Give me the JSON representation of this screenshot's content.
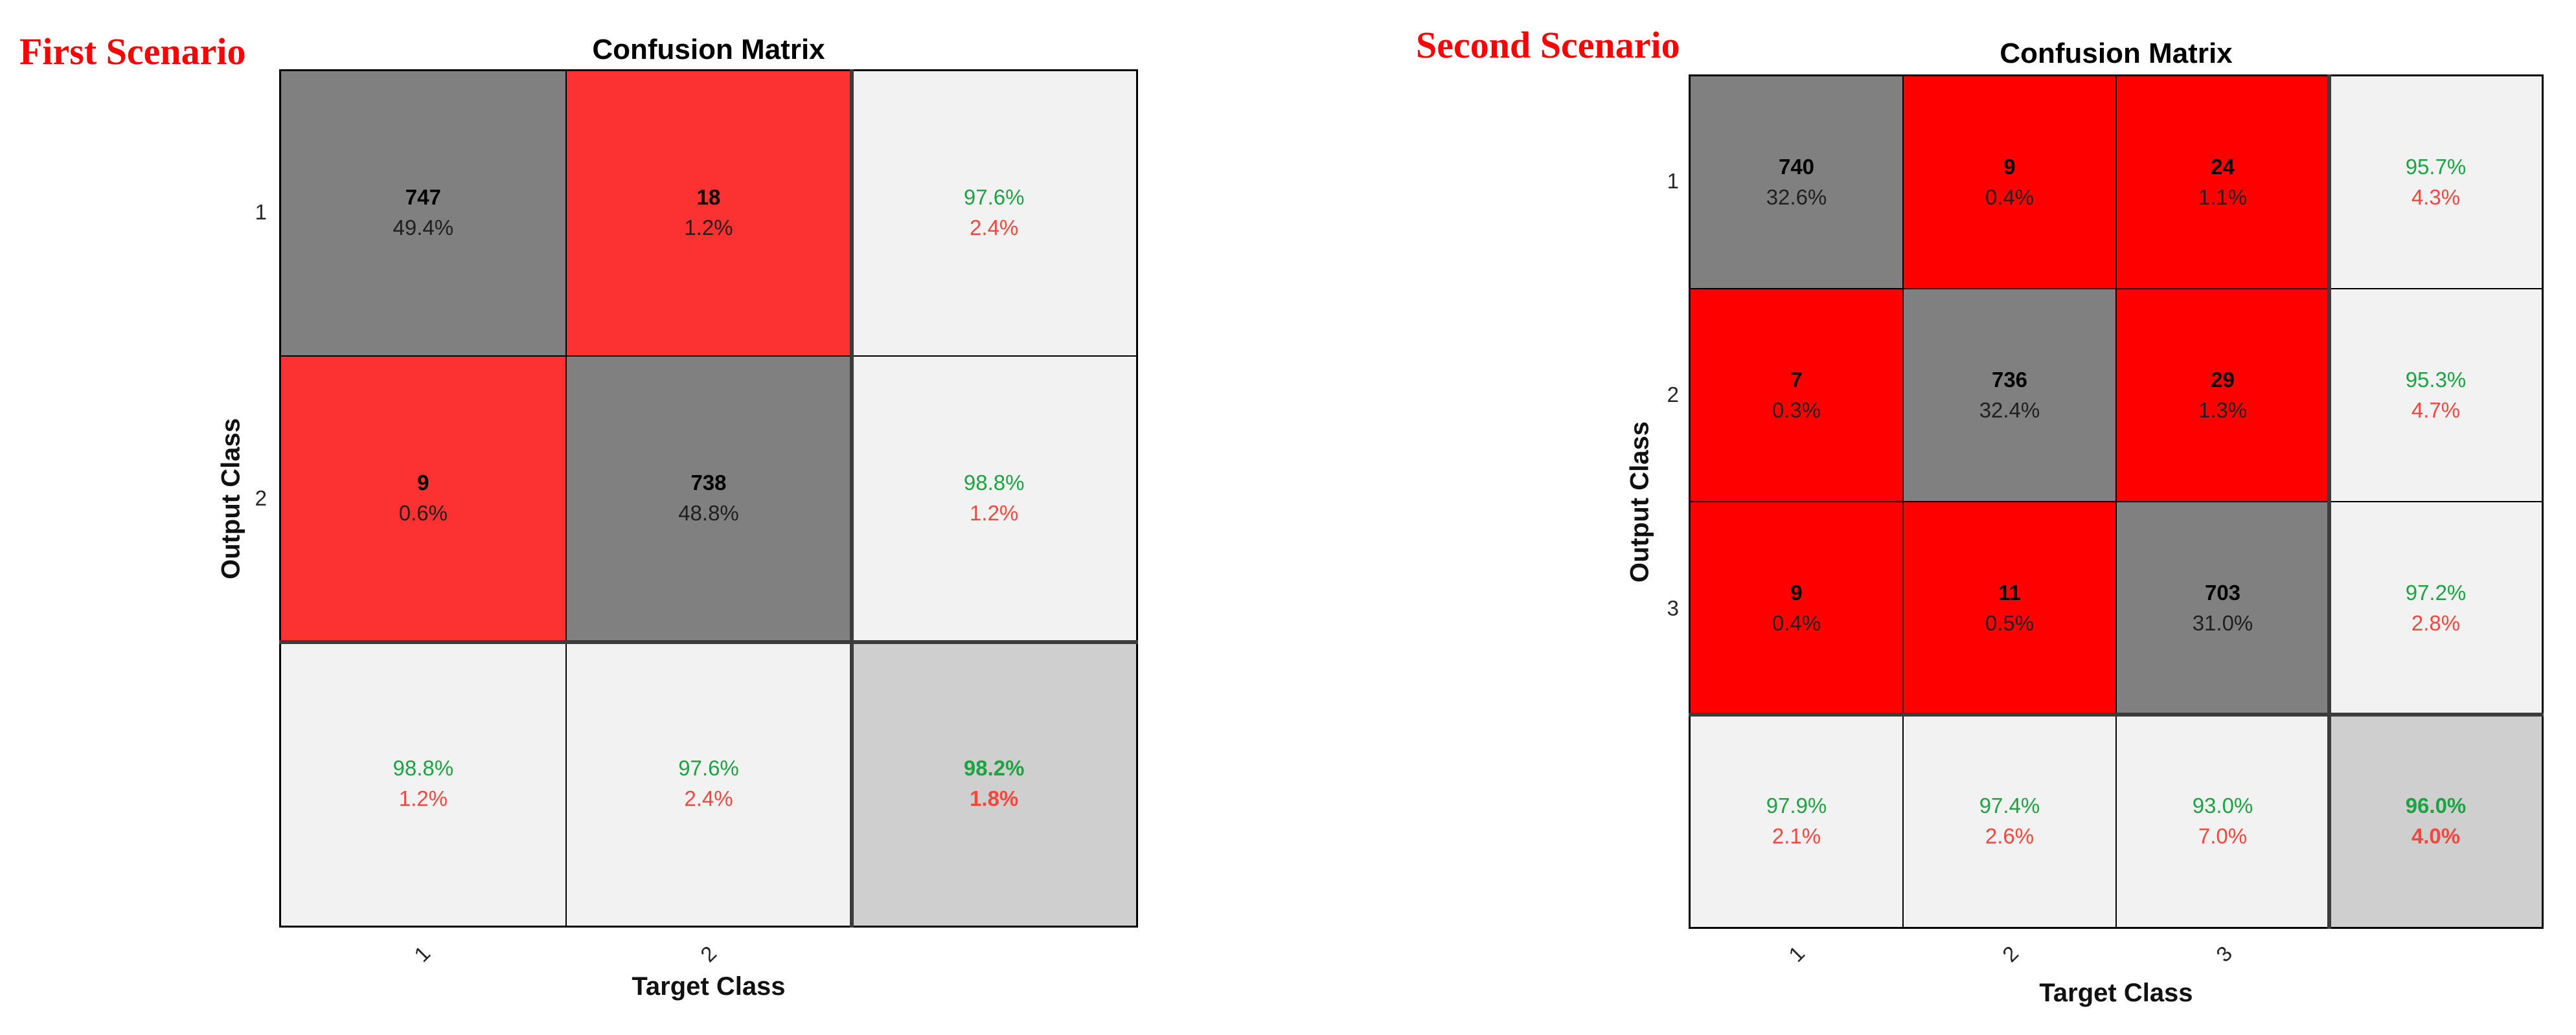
{
  "colors": {
    "scenario_red": "#f50505",
    "diag_gray": "#808080",
    "off_red_first": "#fc3232",
    "off_red_second": "#fe0000",
    "summary_bg": "#f2f2f2",
    "total_bg": "#cfcfcf",
    "green_text": "#1ba441",
    "red_text": "#f4473d",
    "grid_line": "#000000",
    "summary_separator": "#3c3c3c"
  },
  "figures": [
    {
      "scenario_label": "First Scenario",
      "title": "Confusion Matrix",
      "x_axis_label": "Target Class",
      "y_axis_label": "Output Class",
      "y_ticks": [
        "1",
        "2"
      ],
      "x_ticks": [
        "1",
        "2"
      ],
      "rows": [
        [
          {
            "n": "747",
            "p": "49.4%"
          },
          {
            "n": "18",
            "p": "1.2%"
          }
        ],
        [
          {
            "n": "9",
            "p": "0.6%"
          },
          {
            "n": "738",
            "p": "48.8%"
          }
        ]
      ],
      "col_summary": [
        {
          "g": "97.6%",
          "r": "2.4%"
        },
        {
          "g": "98.8%",
          "r": "1.2%"
        }
      ],
      "row_summary": [
        {
          "g": "98.8%",
          "r": "1.2%"
        },
        {
          "g": "97.6%",
          "r": "2.4%"
        }
      ],
      "total": {
        "g": "98.2%",
        "r": "1.8%"
      }
    },
    {
      "scenario_label": "Second Scenario",
      "title": "Confusion Matrix",
      "x_axis_label": "Target Class",
      "y_axis_label": "Output Class",
      "y_ticks": [
        "1",
        "2",
        "3"
      ],
      "x_ticks": [
        "1",
        "2",
        "3"
      ],
      "rows": [
        [
          {
            "n": "740",
            "p": "32.6%"
          },
          {
            "n": "9",
            "p": "0.4%"
          },
          {
            "n": "24",
            "p": "1.1%"
          }
        ],
        [
          {
            "n": "7",
            "p": "0.3%"
          },
          {
            "n": "736",
            "p": "32.4%"
          },
          {
            "n": "29",
            "p": "1.3%"
          }
        ],
        [
          {
            "n": "9",
            "p": "0.4%"
          },
          {
            "n": "11",
            "p": "0.5%"
          },
          {
            "n": "703",
            "p": "31.0%"
          }
        ]
      ],
      "col_summary": [
        {
          "g": "95.7%",
          "r": "4.3%"
        },
        {
          "g": "95.3%",
          "r": "4.7%"
        },
        {
          "g": "97.2%",
          "r": "2.8%"
        }
      ],
      "row_summary": [
        {
          "g": "97.9%",
          "r": "2.1%"
        },
        {
          "g": "97.4%",
          "r": "2.6%"
        },
        {
          "g": "93.0%",
          "r": "7.0%"
        }
      ],
      "total": {
        "g": "96.0%",
        "r": "4.0%"
      }
    }
  ],
  "chart_data": [
    {
      "type": "heatmap",
      "title": "Confusion Matrix",
      "subtitle": "First Scenario",
      "xlabel": "Target Class",
      "ylabel": "Output Class",
      "classes": [
        1,
        2
      ],
      "counts": [
        [
          747,
          18
        ],
        [
          9,
          738
        ]
      ],
      "count_pct": [
        [
          49.4,
          1.2
        ],
        [
          0.6,
          48.8
        ]
      ],
      "precision_pct": [
        97.6,
        98.8
      ],
      "precision_err_pct": [
        2.4,
        1.2
      ],
      "recall_pct": [
        98.8,
        97.6
      ],
      "recall_err_pct": [
        1.2,
        2.4
      ],
      "overall_accuracy_pct": 98.2,
      "overall_error_pct": 1.8,
      "legend_position": "none",
      "grid": true
    },
    {
      "type": "heatmap",
      "title": "Confusion Matrix",
      "subtitle": "Second Scenario",
      "xlabel": "Target Class",
      "ylabel": "Output Class",
      "classes": [
        1,
        2,
        3
      ],
      "counts": [
        [
          740,
          9,
          24
        ],
        [
          7,
          736,
          29
        ],
        [
          9,
          11,
          703
        ]
      ],
      "count_pct": [
        [
          32.6,
          0.4,
          1.1
        ],
        [
          0.3,
          32.4,
          1.3
        ],
        [
          0.4,
          0.5,
          31.0
        ]
      ],
      "precision_pct": [
        95.7,
        95.3,
        97.2
      ],
      "precision_err_pct": [
        4.3,
        4.7,
        2.8
      ],
      "recall_pct": [
        97.9,
        97.4,
        93.0
      ],
      "recall_err_pct": [
        2.1,
        2.6,
        7.0
      ],
      "overall_accuracy_pct": 96.0,
      "overall_error_pct": 4.0,
      "legend_position": "none",
      "grid": true
    }
  ]
}
